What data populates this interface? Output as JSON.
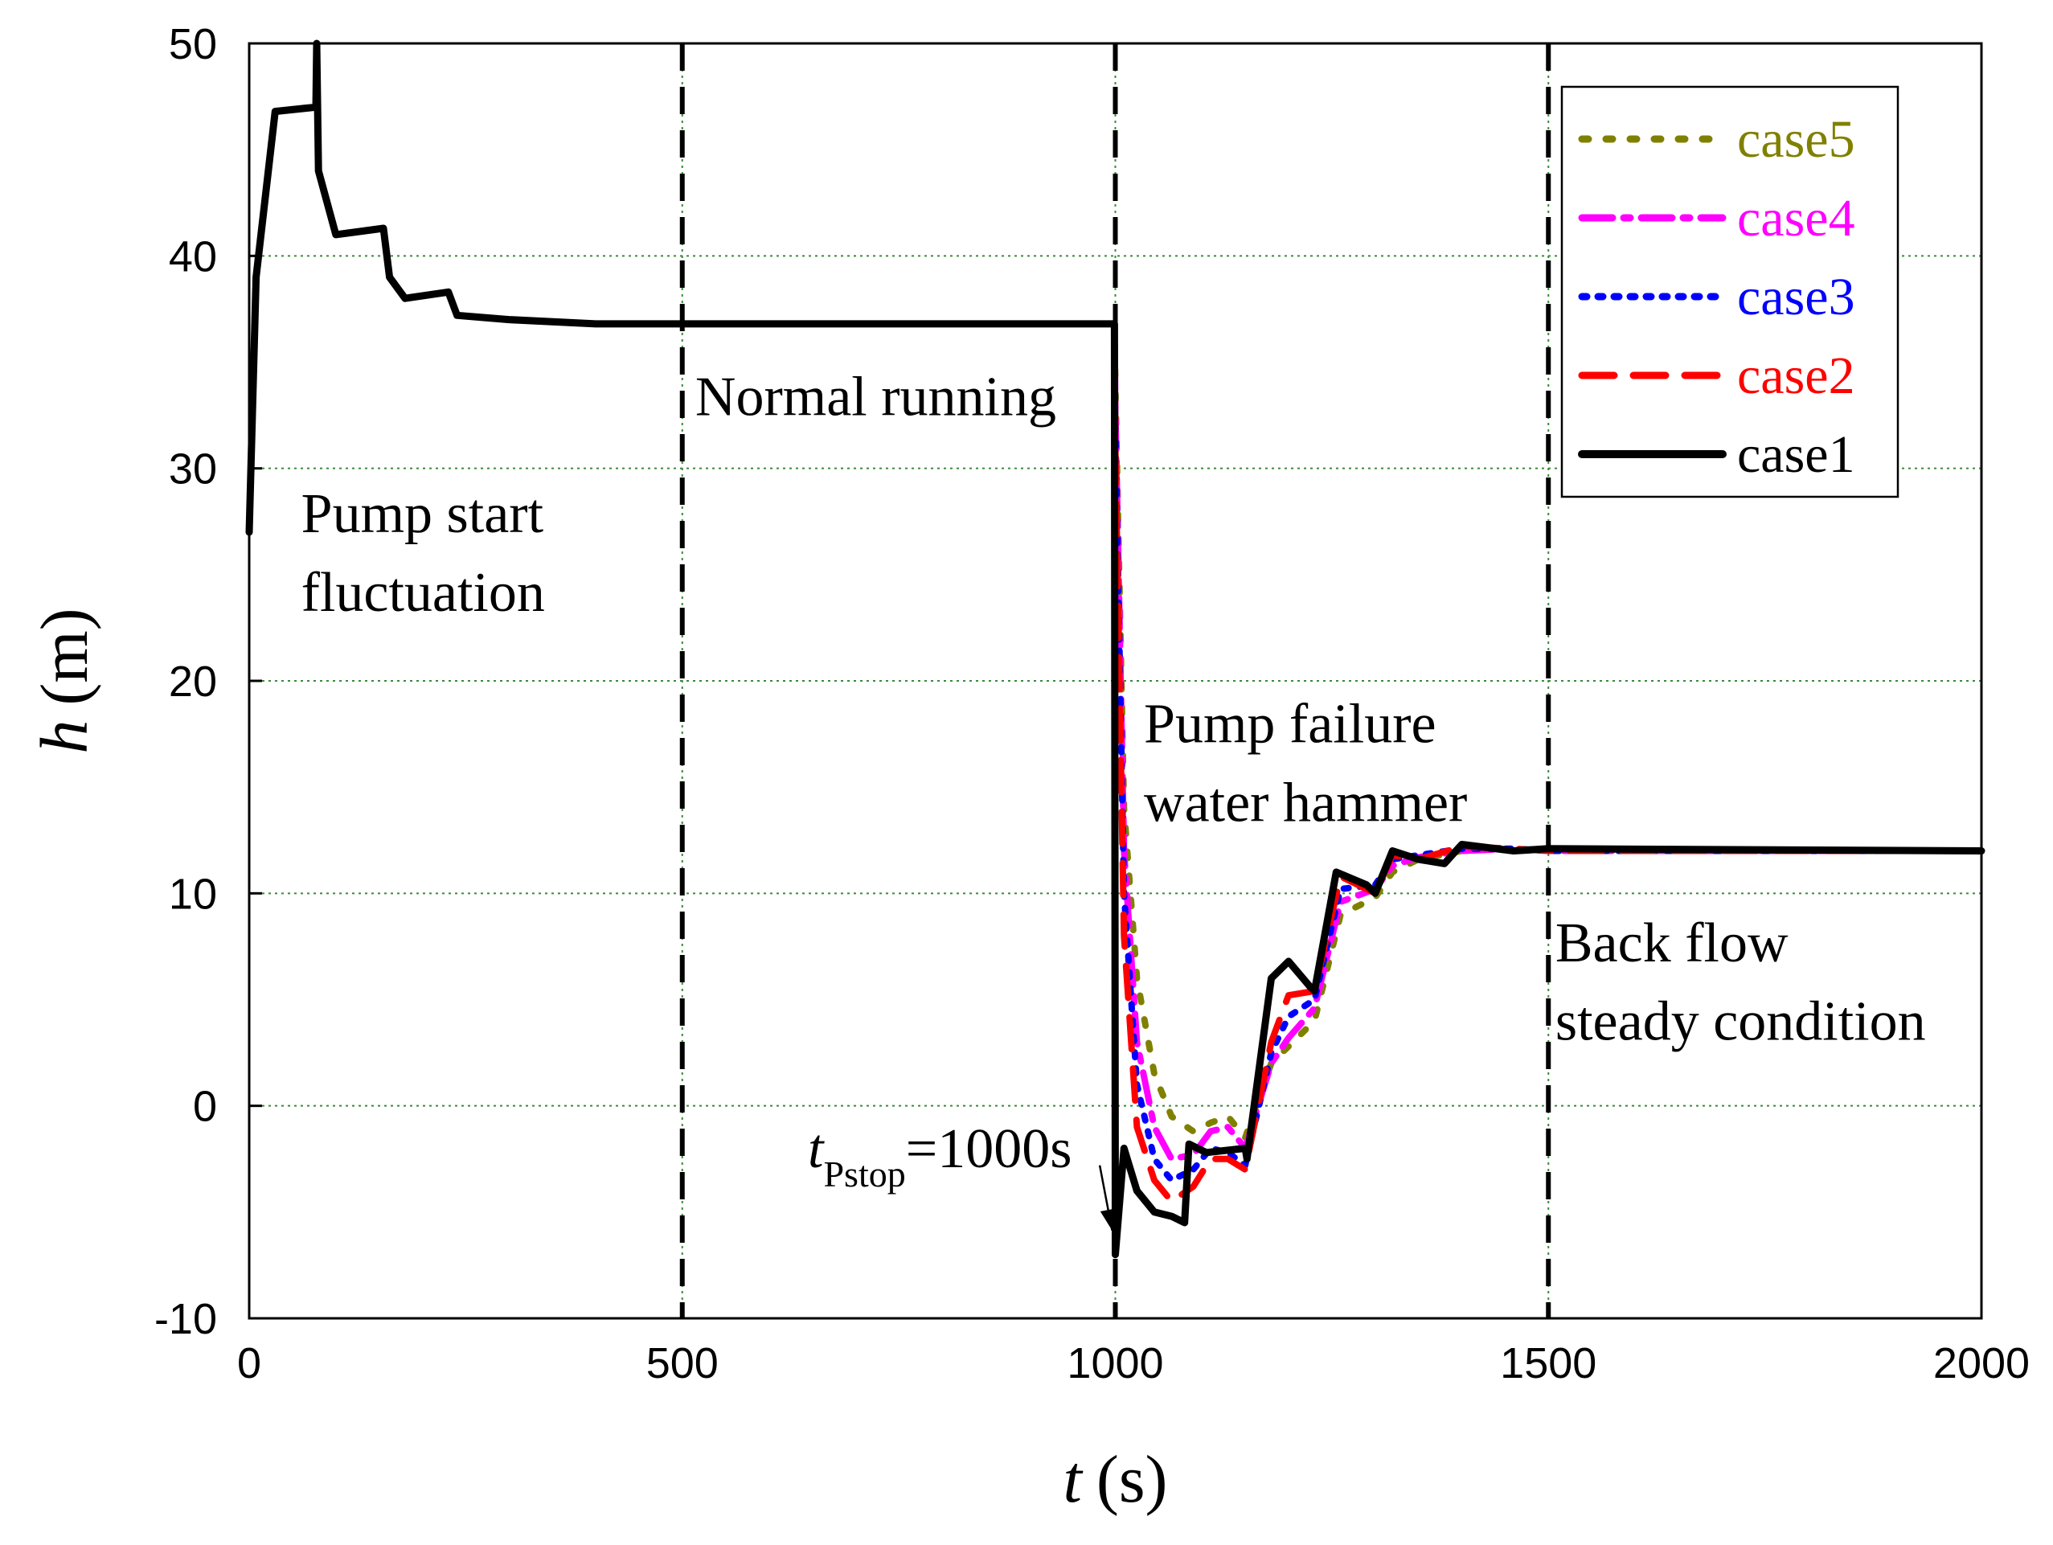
{
  "chart_data": {
    "type": "line",
    "xlabel": {
      "var": "t",
      "unit": "(s)"
    },
    "ylabel": {
      "var": "h",
      "unit": "(m)"
    },
    "xlim": [
      0,
      2000
    ],
    "ylim": [
      -10,
      50
    ],
    "xticks": [
      0,
      500,
      1000,
      1500,
      2000
    ],
    "xtick_labels": [
      "0",
      "500",
      "1000",
      "1500",
      "2000"
    ],
    "yticks": [
      -10,
      0,
      10,
      20,
      30,
      40,
      50
    ],
    "ytick_labels": [
      "-10",
      "0",
      "10",
      "20",
      "30",
      "40",
      "50"
    ],
    "grid": true,
    "legend_position": "top-right",
    "phase_dividers": [
      500,
      1000,
      1500
    ],
    "annotations": [
      {
        "text": "Pump start",
        "x": 60,
        "y": 27
      },
      {
        "text": "fluctuation",
        "x": 60,
        "y": 23.3
      },
      {
        "text": "Normal running",
        "x": 515,
        "y": 32.5
      },
      {
        "text": "Pump failure",
        "x": 1033,
        "y": 17.1
      },
      {
        "text": "water hammer",
        "x": 1033,
        "y": 13.4
      },
      {
        "text": "Back flow",
        "x": 1508,
        "y": 6.8
      },
      {
        "text": "steady condition",
        "x": 1508,
        "y": 3.1
      }
    ],
    "arrow_label": {
      "var": "t",
      "sub": "Pstop",
      "rest": "=1000s",
      "target": [
        1000,
        -7
      ],
      "anchor": [
        982,
        -2.8
      ]
    },
    "series": [
      {
        "name": "case5",
        "color": "#808000",
        "dash": "dot",
        "x": [
          0,
          8,
          30,
          77,
          78,
          80,
          100,
          155,
          162,
          180,
          230,
          240,
          300,
          400,
          500,
          999,
          1000,
          1010,
          1025,
          1045,
          1065,
          1090,
          1110,
          1130,
          1150,
          1180,
          1200,
          1230,
          1260,
          1300,
          1320,
          1350,
          1400,
          1460,
          1500,
          2000
        ],
        "y": [
          27,
          39,
          46.8,
          47,
          50,
          44,
          41,
          41.3,
          39,
          38,
          38.3,
          37.2,
          37,
          36.8,
          36.8,
          36.8,
          34,
          14,
          6,
          1.5,
          -0.5,
          -1.2,
          -0.8,
          -0.5,
          -1.5,
          2,
          2.8,
          4,
          9,
          9.8,
          11,
          11.6,
          12,
          12.1,
          12,
          12
        ]
      },
      {
        "name": "case4",
        "color": "#ff00ff",
        "dash": "dashdot",
        "x": [
          0,
          8,
          30,
          77,
          78,
          80,
          100,
          155,
          162,
          180,
          230,
          240,
          300,
          400,
          500,
          999,
          1000,
          1010,
          1025,
          1045,
          1065,
          1090,
          1110,
          1130,
          1150,
          1180,
          1200,
          1230,
          1260,
          1300,
          1320,
          1350,
          1400,
          1460,
          1500,
          2000
        ],
        "y": [
          27,
          39,
          46.8,
          47,
          50,
          44,
          41,
          41.3,
          39,
          38,
          38.3,
          37.2,
          37,
          36.8,
          36.8,
          36.8,
          33,
          12,
          3,
          -1,
          -2.5,
          -2.3,
          -1.2,
          -1,
          -2,
          2,
          3.2,
          4.6,
          9.6,
          10.2,
          11.3,
          11.7,
          12,
          12.1,
          12,
          12
        ]
      },
      {
        "name": "case3",
        "color": "#0000ff",
        "dash": "dotdense",
        "x": [
          0,
          8,
          30,
          77,
          78,
          80,
          100,
          155,
          162,
          180,
          230,
          240,
          300,
          400,
          500,
          999,
          1000,
          1010,
          1025,
          1045,
          1065,
          1090,
          1110,
          1130,
          1150,
          1180,
          1200,
          1230,
          1260,
          1300,
          1320,
          1350,
          1400,
          1460,
          1500,
          2000
        ],
        "y": [
          27,
          39,
          46.8,
          47,
          50,
          44,
          41,
          41.3,
          39,
          38,
          38.3,
          37.2,
          37,
          36.8,
          36.8,
          36.8,
          32,
          10,
          1,
          -2.5,
          -3.5,
          -3,
          -2,
          -2.2,
          -2.8,
          2.5,
          4.2,
          5,
          10.2,
          10.4,
          11.6,
          11.8,
          12.1,
          12.1,
          12,
          12
        ]
      },
      {
        "name": "case2",
        "color": "#ff0000",
        "dash": "dash",
        "x": [
          0,
          8,
          30,
          77,
          78,
          80,
          100,
          155,
          162,
          180,
          230,
          240,
          300,
          400,
          500,
          999,
          1000,
          1010,
          1025,
          1045,
          1065,
          1090,
          1110,
          1130,
          1150,
          1180,
          1200,
          1230,
          1260,
          1300,
          1320,
          1350,
          1400,
          1460,
          1500,
          2000
        ],
        "y": [
          27,
          39,
          46.8,
          47,
          50,
          44,
          41,
          41.3,
          39,
          38,
          38.3,
          37.2,
          37,
          36.8,
          36.8,
          36.8,
          31,
          8,
          -1,
          -3.5,
          -4.5,
          -3.8,
          -2.5,
          -2.5,
          -3,
          3,
          5.2,
          5.4,
          10.8,
          10,
          11.8,
          11.6,
          12.2,
          12.1,
          12,
          12
        ]
      },
      {
        "name": "case1",
        "color": "#000000",
        "dash": "solid",
        "x": [
          0,
          8,
          30,
          77,
          78,
          80,
          100,
          155,
          162,
          180,
          230,
          240,
          300,
          400,
          500,
          999,
          1000,
          1010,
          1025,
          1045,
          1065,
          1080,
          1085,
          1105,
          1150,
          1152,
          1180,
          1200,
          1225,
          1230,
          1255,
          1290,
          1300,
          1320,
          1350,
          1380,
          1400,
          1460,
          1500,
          2000
        ],
        "y": [
          27,
          39,
          46.8,
          47,
          50,
          44,
          41,
          41.3,
          39,
          38,
          38.3,
          37.2,
          37,
          36.8,
          36.8,
          36.8,
          -7,
          -2,
          -4,
          -5,
          -5.2,
          -5.5,
          -1.8,
          -2.2,
          -2,
          -2.5,
          6,
          6.8,
          5.6,
          5.4,
          11,
          10.4,
          10,
          12,
          11.6,
          11.4,
          12.3,
          12,
          12.1,
          12
        ]
      }
    ]
  }
}
